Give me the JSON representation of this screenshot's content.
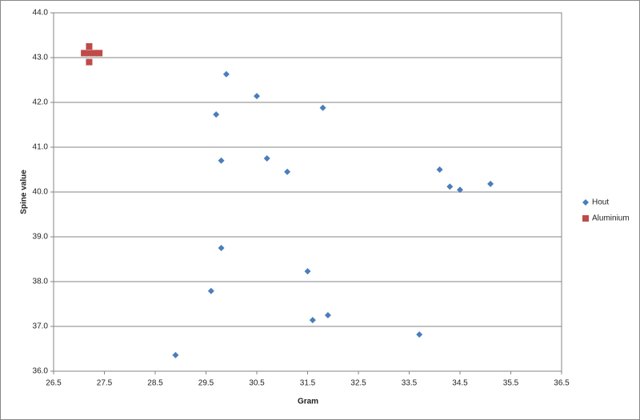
{
  "chart_data": {
    "type": "scatter",
    "x_label": "Gram",
    "y_label": "Spine value",
    "xlim": [
      26.5,
      36.5
    ],
    "xticks": [
      26.5,
      27.5,
      28.5,
      29.5,
      30.5,
      31.5,
      32.5,
      33.5,
      34.5,
      35.5,
      36.5
    ],
    "ylim": [
      36.0,
      44.0
    ],
    "yticks": [
      {
        "value": 36,
        "label": "36.0"
      },
      {
        "value": 37,
        "label": "37.0"
      },
      {
        "value": 38,
        "label": "38.0"
      },
      {
        "value": 39,
        "label": "39.0"
      },
      {
        "value": 40,
        "label": "40.0"
      },
      {
        "value": 41,
        "label": "41.0"
      },
      {
        "value": 42,
        "label": "42.0"
      },
      {
        "value": 43,
        "label": "43.0"
      },
      {
        "value": 44,
        "label": "44.0"
      }
    ],
    "grid": true,
    "legend": "right",
    "series": [
      {
        "name": "Hout",
        "color": "#4a7ebb",
        "marker": "diamond",
        "x": [
          29.9,
          30.5,
          31.8,
          29.7,
          30.7,
          29.8,
          31.1,
          34.1,
          34.3,
          34.5,
          35.1,
          29.8,
          29.6,
          31.5,
          31.6,
          31.9,
          33.7,
          28.9
        ],
        "values": [
          42.63,
          42.14,
          41.88,
          41.73,
          40.75,
          40.7,
          40.45,
          40.5,
          40.12,
          40.05,
          40.18,
          38.75,
          37.79,
          38.23,
          37.14,
          37.25,
          36.82,
          36.36
        ]
      },
      {
        "name": "Aluminium",
        "color": "#be4b48",
        "marker": "square",
        "x": [
          27.2,
          27.1,
          27.2,
          27.3,
          27.4,
          27.2
        ],
        "values": [
          43.25,
          43.1,
          43.1,
          43.1,
          43.1,
          42.9
        ]
      }
    ]
  }
}
